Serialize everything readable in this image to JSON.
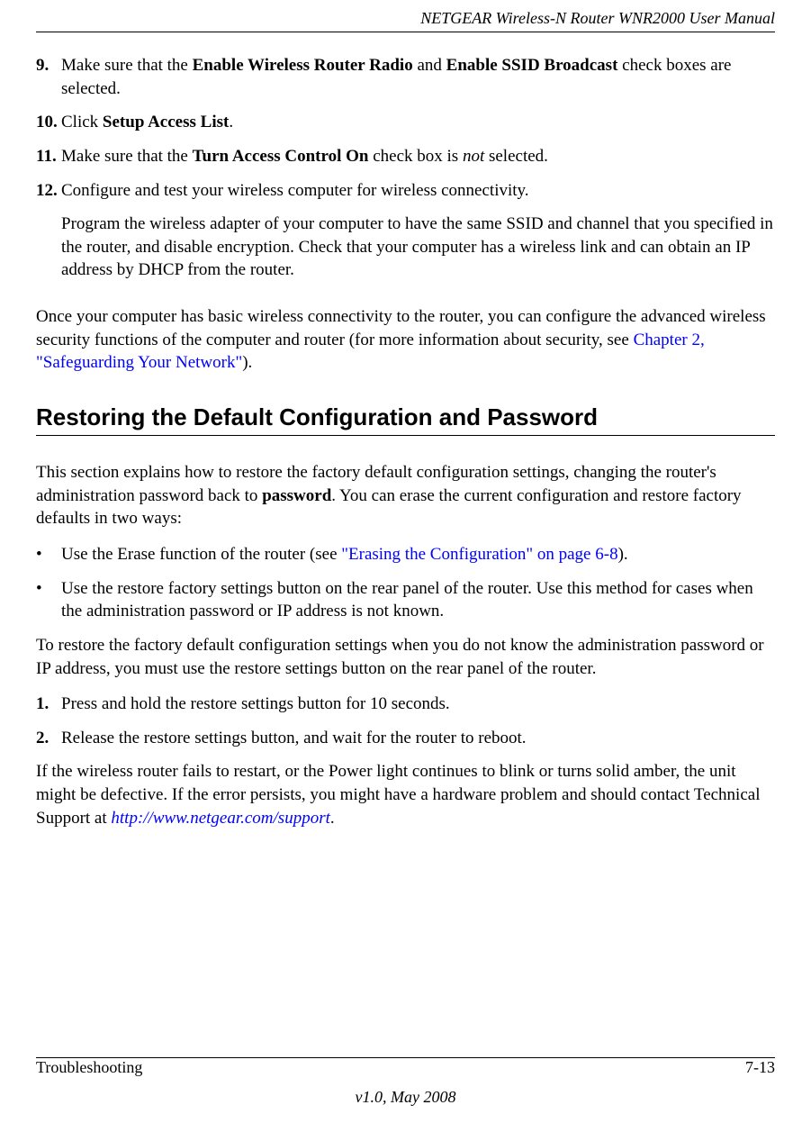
{
  "header": {
    "running_title": "NETGEAR Wireless-N Router WNR2000 User Manual"
  },
  "steps_a": [
    {
      "num": "9.",
      "pre": "Make sure that the ",
      "bold1": "Enable Wireless Router Radio",
      "mid1": " and ",
      "bold2": "Enable SSID Broadcast",
      "post": " check boxes are selected."
    },
    {
      "num": "10.",
      "pre": "Click ",
      "bold1": "Setup Access List",
      "post": "."
    },
    {
      "num": "11.",
      "pre": "Make sure that the ",
      "bold1": "Turn Access Control On",
      "mid1": " check box is ",
      "italic1": "not",
      "post": " selected."
    },
    {
      "num": "12.",
      "line1": "Configure and test your wireless computer for wireless connectivity.",
      "sub": "Program the wireless adapter of your computer to have the same SSID and channel that you specified in the router, and disable encryption. Check that your computer has a wireless link and can obtain an IP address by DHCP from the router."
    }
  ],
  "para_after_steps": {
    "pre": "Once your computer has basic wireless connectivity to the router, you can configure the advanced wireless security functions of the computer and router (for more information about security, see ",
    "link": "Chapter 2, \"Safeguarding Your Network\"",
    "post": ")."
  },
  "section": {
    "title": "Restoring the Default Configuration and Password",
    "intro": {
      "pre": "This section explains how to restore the factory default configuration settings, changing the router's administration password back to ",
      "bold": "password",
      "post": ". You can erase the current configuration and restore factory defaults in two ways:"
    },
    "bullets": [
      {
        "pre": "Use the Erase function of the router (see ",
        "link": "\"Erasing the Configuration\" on page 6-8",
        "post": ")."
      },
      {
        "text": "Use the restore factory settings button on the rear panel of the router. Use this method for cases when the administration password or IP address is not known."
      }
    ],
    "para2": "To restore the factory default configuration settings when you do not know the administration password or IP address, you must use the restore settings button on the rear panel of the router.",
    "steps": [
      {
        "num": "1.",
        "text": "Press and hold the restore settings button for 10 seconds."
      },
      {
        "num": "2.",
        "text": "Release the restore settings button, and wait for the router to reboot."
      }
    ],
    "para3": {
      "pre": "If the wireless router fails to restart, or the Power light continues to blink or turns solid amber, the unit might be defective. If the error persists, you might have a hardware problem and should contact Technical Support at ",
      "link": "http://www.netgear.com/support",
      "post": "."
    }
  },
  "footer": {
    "left": "Troubleshooting",
    "right": "7-13",
    "version": "v1.0, May 2008"
  }
}
